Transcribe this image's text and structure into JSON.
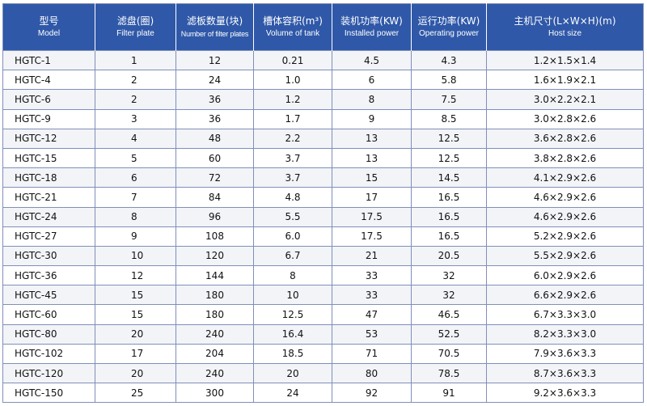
{
  "table": {
    "headers": [
      {
        "zh": "型号",
        "en": "Model"
      },
      {
        "zh": "滤盘(圈)",
        "en": "Filter plate"
      },
      {
        "zh": "滤板数量(块)",
        "en": "Number of filter plates"
      },
      {
        "zh": "槽体容积(m³)",
        "en": "Volume of tank"
      },
      {
        "zh": "装机功率(KW)",
        "en": "Installed power"
      },
      {
        "zh": "运行功率(KW)",
        "en": "Operating power"
      },
      {
        "zh": "主机尺寸(L×W×H)(m)",
        "en": "Host size"
      }
    ],
    "rows": [
      [
        "HGTC-1",
        "1",
        "12",
        "0.21",
        "4.5",
        "4.3",
        "1.2×1.5×1.4"
      ],
      [
        "HGTC-4",
        "2",
        "24",
        "1.0",
        "6",
        "5.8",
        "1.6×1.9×2.1"
      ],
      [
        "HGTC-6",
        "2",
        "36",
        "1.2",
        "8",
        "7.5",
        "3.0×2.2×2.1"
      ],
      [
        "HGTC-9",
        "3",
        "36",
        "1.7",
        "9",
        "8.5",
        "3.0×2.8×2.6"
      ],
      [
        "HGTC-12",
        "4",
        "48",
        "2.2",
        "13",
        "12.5",
        "3.6×2.8×2.6"
      ],
      [
        "HGTC-15",
        "5",
        "60",
        "3.7",
        "13",
        "12.5",
        "3.8×2.8×2.6"
      ],
      [
        "HGTC-18",
        "6",
        "72",
        "3.7",
        "15",
        "14.5",
        "4.1×2.9×2.6"
      ],
      [
        "HGTC-21",
        "7",
        "84",
        "4.8",
        "17",
        "16.5",
        "4.6×2.9×2.6"
      ],
      [
        "HGTC-24",
        "8",
        "96",
        "5.5",
        "17.5",
        "16.5",
        "4.6×2.9×2.6"
      ],
      [
        "HGTC-27",
        "9",
        "108",
        "6.0",
        "17.5",
        "16.5",
        "5.2×2.9×2.6"
      ],
      [
        "HGTC-30",
        "10",
        "120",
        "6.7",
        "21",
        "20.5",
        "5.5×2.9×2.6"
      ],
      [
        "HGTC-36",
        "12",
        "144",
        "8",
        "33",
        "32",
        "6.0×2.9×2.6"
      ],
      [
        "HGTC-45",
        "15",
        "180",
        "10",
        "33",
        "32",
        "6.6×2.9×2.6"
      ],
      [
        "HGTC-60",
        "15",
        "180",
        "12.5",
        "47",
        "46.5",
        "6.7×3.3×3.0"
      ],
      [
        "HGTC-80",
        "20",
        "240",
        "16.4",
        "53",
        "52.5",
        "8.2×3.3×3.0"
      ],
      [
        "HGTC-102",
        "17",
        "204",
        "18.5",
        "71",
        "70.5",
        "7.9×3.6×3.3"
      ],
      [
        "HGTC-120",
        "20",
        "240",
        "20",
        "80",
        "78.5",
        "8.7×3.6×3.3"
      ],
      [
        "HGTC-150",
        "25",
        "300",
        "24",
        "92",
        "91",
        "9.2×3.6×3.3"
      ]
    ]
  }
}
